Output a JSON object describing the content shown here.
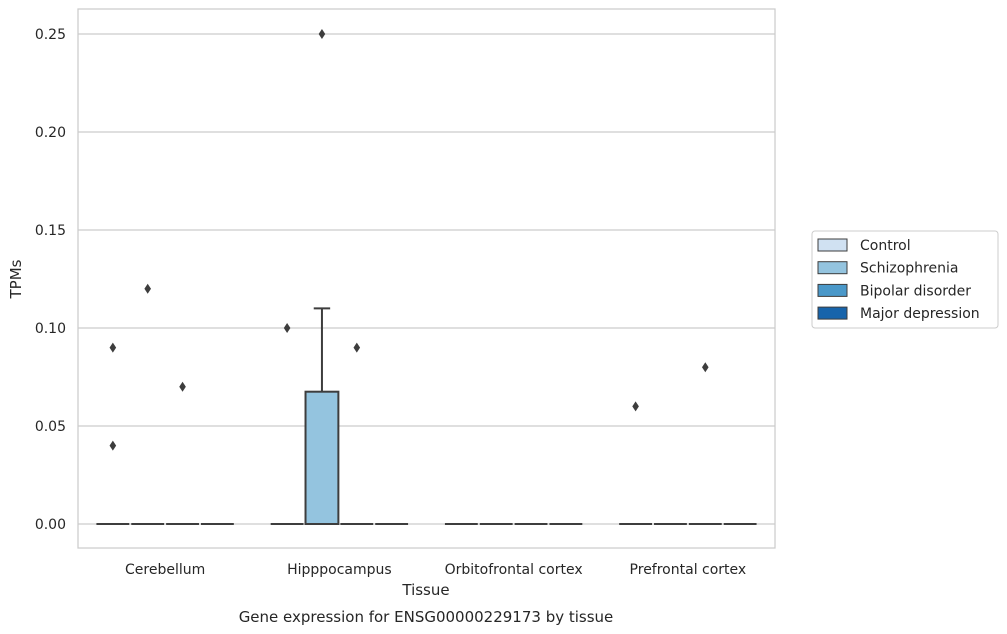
{
  "chart_data": {
    "type": "box",
    "title": "",
    "caption": "Gene expression for ENSG00000229173 by tissue",
    "xlabel": "Tissue",
    "ylabel": "TPMs",
    "ylim": [
      -0.012,
      0.263
    ],
    "yticks": [
      0.0,
      0.05,
      0.1,
      0.15,
      0.2,
      0.25
    ],
    "ytick_labels": [
      "0.00",
      "0.05",
      "0.10",
      "0.15",
      "0.20",
      "0.25"
    ],
    "grid": true,
    "legend_position": "right",
    "categories": [
      "Cerebellum",
      "Hipppocampus",
      "Orbitofrontal cortex",
      "Prefrontal cortex"
    ],
    "series": [
      {
        "name": "Control",
        "color": "#d0e1f2",
        "boxes": [
          {
            "q1": 0,
            "median": 0,
            "q3": 0,
            "whisker_low": 0,
            "whisker_high": 0,
            "outliers": [
              0.04,
              0.09
            ]
          },
          {
            "q1": 0,
            "median": 0,
            "q3": 0,
            "whisker_low": 0,
            "whisker_high": 0,
            "outliers": [
              0.1
            ]
          },
          {
            "q1": 0,
            "median": 0,
            "q3": 0,
            "whisker_low": 0,
            "whisker_high": 0,
            "outliers": []
          },
          {
            "q1": 0,
            "median": 0,
            "q3": 0,
            "whisker_low": 0,
            "whisker_high": 0,
            "outliers": [
              0.06
            ]
          }
        ]
      },
      {
        "name": "Schizophrenia",
        "color": "#94c4df",
        "boxes": [
          {
            "q1": 0,
            "median": 0,
            "q3": 0,
            "whisker_low": 0,
            "whisker_high": 0,
            "outliers": [
              0.12
            ]
          },
          {
            "q1": 0,
            "median": 0,
            "q3": 0.0675,
            "whisker_low": 0,
            "whisker_high": 0.11,
            "outliers": [
              0.25
            ]
          },
          {
            "q1": 0,
            "median": 0,
            "q3": 0,
            "whisker_low": 0,
            "whisker_high": 0,
            "outliers": []
          },
          {
            "q1": 0,
            "median": 0,
            "q3": 0,
            "whisker_low": 0,
            "whisker_high": 0,
            "outliers": []
          }
        ]
      },
      {
        "name": "Bipolar disorder",
        "color": "#4a98c9",
        "boxes": [
          {
            "q1": 0,
            "median": 0,
            "q3": 0,
            "whisker_low": 0,
            "whisker_high": 0,
            "outliers": [
              0.07
            ]
          },
          {
            "q1": 0,
            "median": 0,
            "q3": 0,
            "whisker_low": 0,
            "whisker_high": 0,
            "outliers": [
              0.09
            ]
          },
          {
            "q1": 0,
            "median": 0,
            "q3": 0,
            "whisker_low": 0,
            "whisker_high": 0,
            "outliers": []
          },
          {
            "q1": 0,
            "median": 0,
            "q3": 0,
            "whisker_low": 0,
            "whisker_high": 0,
            "outliers": [
              0.08
            ]
          }
        ]
      },
      {
        "name": "Major depression",
        "color": "#1764ab",
        "boxes": [
          {
            "q1": 0,
            "median": 0,
            "q3": 0,
            "whisker_low": 0,
            "whisker_high": 0,
            "outliers": []
          },
          {
            "q1": 0,
            "median": 0,
            "q3": 0,
            "whisker_low": 0,
            "whisker_high": 0,
            "outliers": []
          },
          {
            "q1": 0,
            "median": 0,
            "q3": 0,
            "whisker_low": 0,
            "whisker_high": 0,
            "outliers": []
          },
          {
            "q1": 0,
            "median": 0,
            "q3": 0,
            "whisker_low": 0,
            "whisker_high": 0,
            "outliers": []
          }
        ]
      }
    ]
  }
}
